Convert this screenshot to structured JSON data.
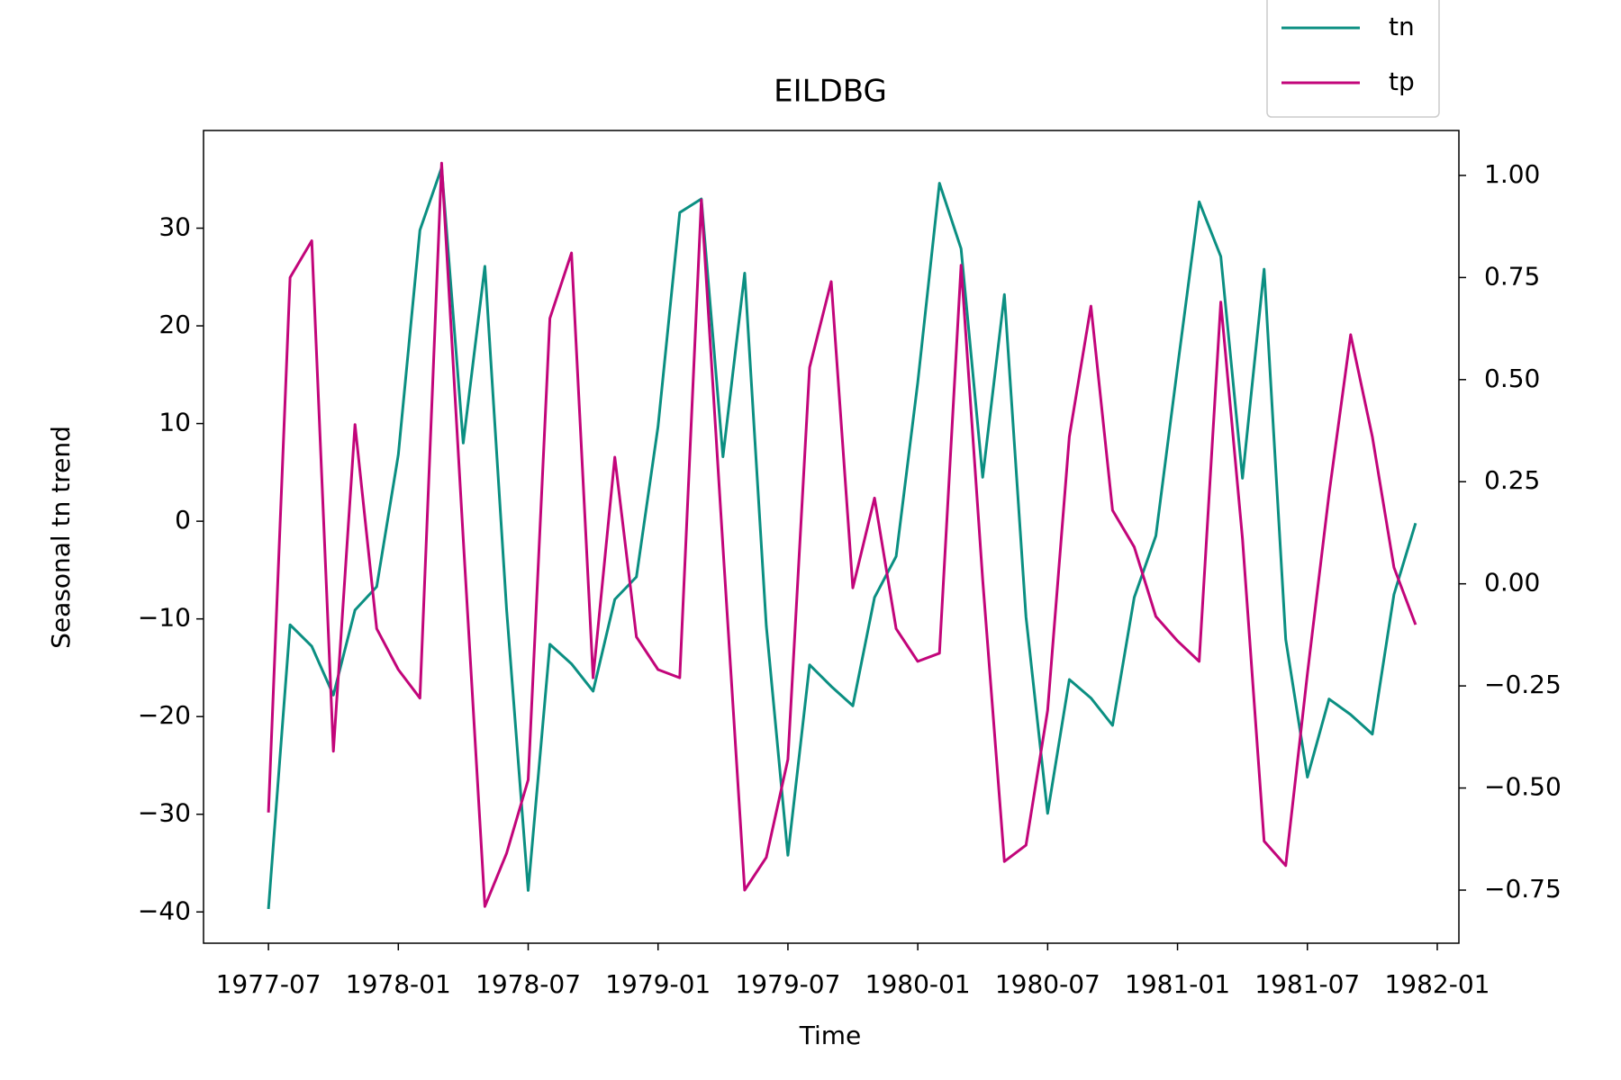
{
  "chart_data": {
    "type": "line",
    "title": "EILDBG",
    "xlabel": "Time",
    "ylabel": "Seasonal tn trend",
    "x": [
      "1977-07",
      "1977-08",
      "1977-09",
      "1977-10",
      "1977-11",
      "1977-12",
      "1978-01",
      "1978-02",
      "1978-03",
      "1978-04",
      "1978-05",
      "1978-06",
      "1978-07",
      "1978-08",
      "1978-09",
      "1978-10",
      "1978-11",
      "1978-12",
      "1979-01",
      "1979-02",
      "1979-03",
      "1979-04",
      "1979-05",
      "1979-06",
      "1979-07",
      "1979-08",
      "1979-09",
      "1979-10",
      "1979-11",
      "1979-12",
      "1980-01",
      "1980-02",
      "1980-03",
      "1980-04",
      "1980-05",
      "1980-06",
      "1980-07",
      "1980-08",
      "1980-09",
      "1980-10",
      "1980-11",
      "1980-12",
      "1981-01",
      "1981-02",
      "1981-03",
      "1981-04",
      "1981-05",
      "1981-06",
      "1981-07",
      "1981-08",
      "1981-09",
      "1981-10",
      "1981-11",
      "1981-12"
    ],
    "series": [
      {
        "name": "tn",
        "color": "#0b8f82",
        "axis": "y",
        "values": [
          -39.7,
          -10.6,
          -12.8,
          -17.8,
          -9.1,
          -6.7,
          6.8,
          29.8,
          36.2,
          8.0,
          26.1,
          -9.0,
          -37.8,
          -12.6,
          -14.6,
          -17.4,
          -8.0,
          -5.7,
          9.7,
          31.6,
          33.0,
          6.6,
          25.4,
          -10.7,
          -34.2,
          -14.7,
          -16.9,
          -18.9,
          -7.8,
          -3.6,
          14.2,
          34.6,
          27.9,
          4.5,
          23.2,
          -9.8,
          -29.9,
          -16.2,
          -18.1,
          -20.9,
          -7.8,
          -1.5,
          15.8,
          32.7,
          27.1,
          4.4,
          25.8,
          -12.1,
          -26.2,
          -18.2,
          -19.8,
          -21.8,
          -7.5,
          -0.2
        ]
      },
      {
        "name": "tp",
        "color": "#c2057a",
        "axis": "y2",
        "values": [
          -0.56,
          0.75,
          0.84,
          -0.41,
          0.39,
          -0.11,
          -0.21,
          -0.28,
          1.03,
          0.11,
          -0.79,
          -0.66,
          -0.48,
          0.65,
          0.81,
          -0.23,
          0.31,
          -0.13,
          -0.21,
          -0.23,
          0.94,
          0.09,
          -0.75,
          -0.67,
          -0.43,
          0.53,
          0.74,
          -0.01,
          0.21,
          -0.11,
          -0.19,
          -0.17,
          0.78,
          0.01,
          -0.68,
          -0.64,
          -0.31,
          0.36,
          0.68,
          0.18,
          0.09,
          -0.08,
          -0.14,
          -0.19,
          0.69,
          0.11,
          -0.63,
          -0.69,
          -0.22,
          0.22,
          0.61,
          0.36,
          0.04,
          -0.1
        ]
      }
    ],
    "xlim": [
      "1977-04",
      "1982-02"
    ],
    "xticks": [
      "1977-07",
      "1978-01",
      "1978-07",
      "1979-01",
      "1979-07",
      "1980-01",
      "1980-07",
      "1981-01",
      "1981-07",
      "1982-01"
    ],
    "ylim": [
      -43.2,
      40
    ],
    "yticks": [
      {
        "value": -40,
        "label": "−40"
      },
      {
        "value": -30,
        "label": "−30"
      },
      {
        "value": -20,
        "label": "−20"
      },
      {
        "value": -10,
        "label": "−10"
      },
      0,
      10,
      20,
      30
    ],
    "y2lim": [
      -0.88,
      1.11
    ],
    "y2ticks": [
      {
        "value": -0.75,
        "label": "−0.75"
      },
      {
        "value": -0.5,
        "label": "−0.50"
      },
      {
        "value": -0.25,
        "label": "−0.25"
      },
      {
        "value": 0,
        "label": "0.00"
      },
      {
        "value": 0.25,
        "label": "0.25"
      },
      {
        "value": 0.5,
        "label": "0.50"
      },
      {
        "value": 0.75,
        "label": "0.75"
      },
      {
        "value": 1,
        "label": "1.00"
      }
    ],
    "legend": "upper right"
  }
}
